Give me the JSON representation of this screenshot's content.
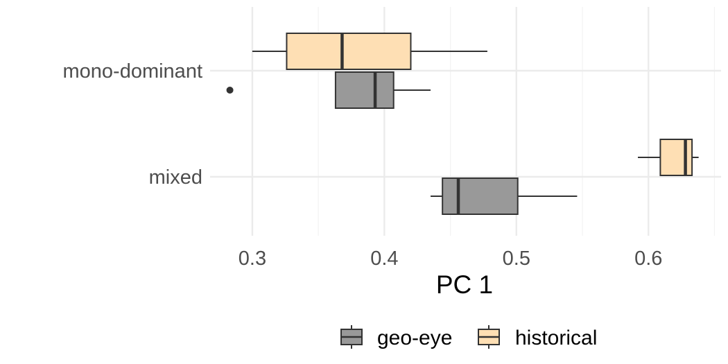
{
  "chart_data": {
    "type": "boxplot",
    "orientation": "horizontal",
    "title": "",
    "xlabel": "PC 1",
    "ylabel": "",
    "xlim": [
      0.268,
      0.655
    ],
    "x_ticks": [
      0.3,
      0.4,
      0.5,
      0.6
    ],
    "x_tick_labels": [
      "0.3",
      "0.4",
      "0.5",
      "0.6"
    ],
    "categories": [
      "mono-dominant",
      "mixed"
    ],
    "grid": true,
    "legend_position": "bottom",
    "series": [
      {
        "name": "geo-eye",
        "color": "#999999",
        "boxes": [
          {
            "category": "mono-dominant",
            "whisker_low": 0.363,
            "q1": 0.363,
            "median": 0.393,
            "q3": 0.407,
            "whisker_high": 0.435,
            "outliers": [
              0.283
            ]
          },
          {
            "category": "mixed",
            "whisker_low": 0.435,
            "q1": 0.444,
            "median": 0.456,
            "q3": 0.501,
            "whisker_high": 0.546,
            "outliers": []
          }
        ]
      },
      {
        "name": "historical",
        "color": "#fedfb4",
        "boxes": [
          {
            "category": "mono-dominant",
            "whisker_low": 0.3,
            "q1": 0.326,
            "median": 0.368,
            "q3": 0.42,
            "whisker_high": 0.478,
            "outliers": []
          },
          {
            "category": "mixed",
            "whisker_low": 0.592,
            "q1": 0.609,
            "median": 0.628,
            "q3": 0.633,
            "whisker_high": 0.638,
            "outliers": []
          }
        ]
      }
    ]
  }
}
